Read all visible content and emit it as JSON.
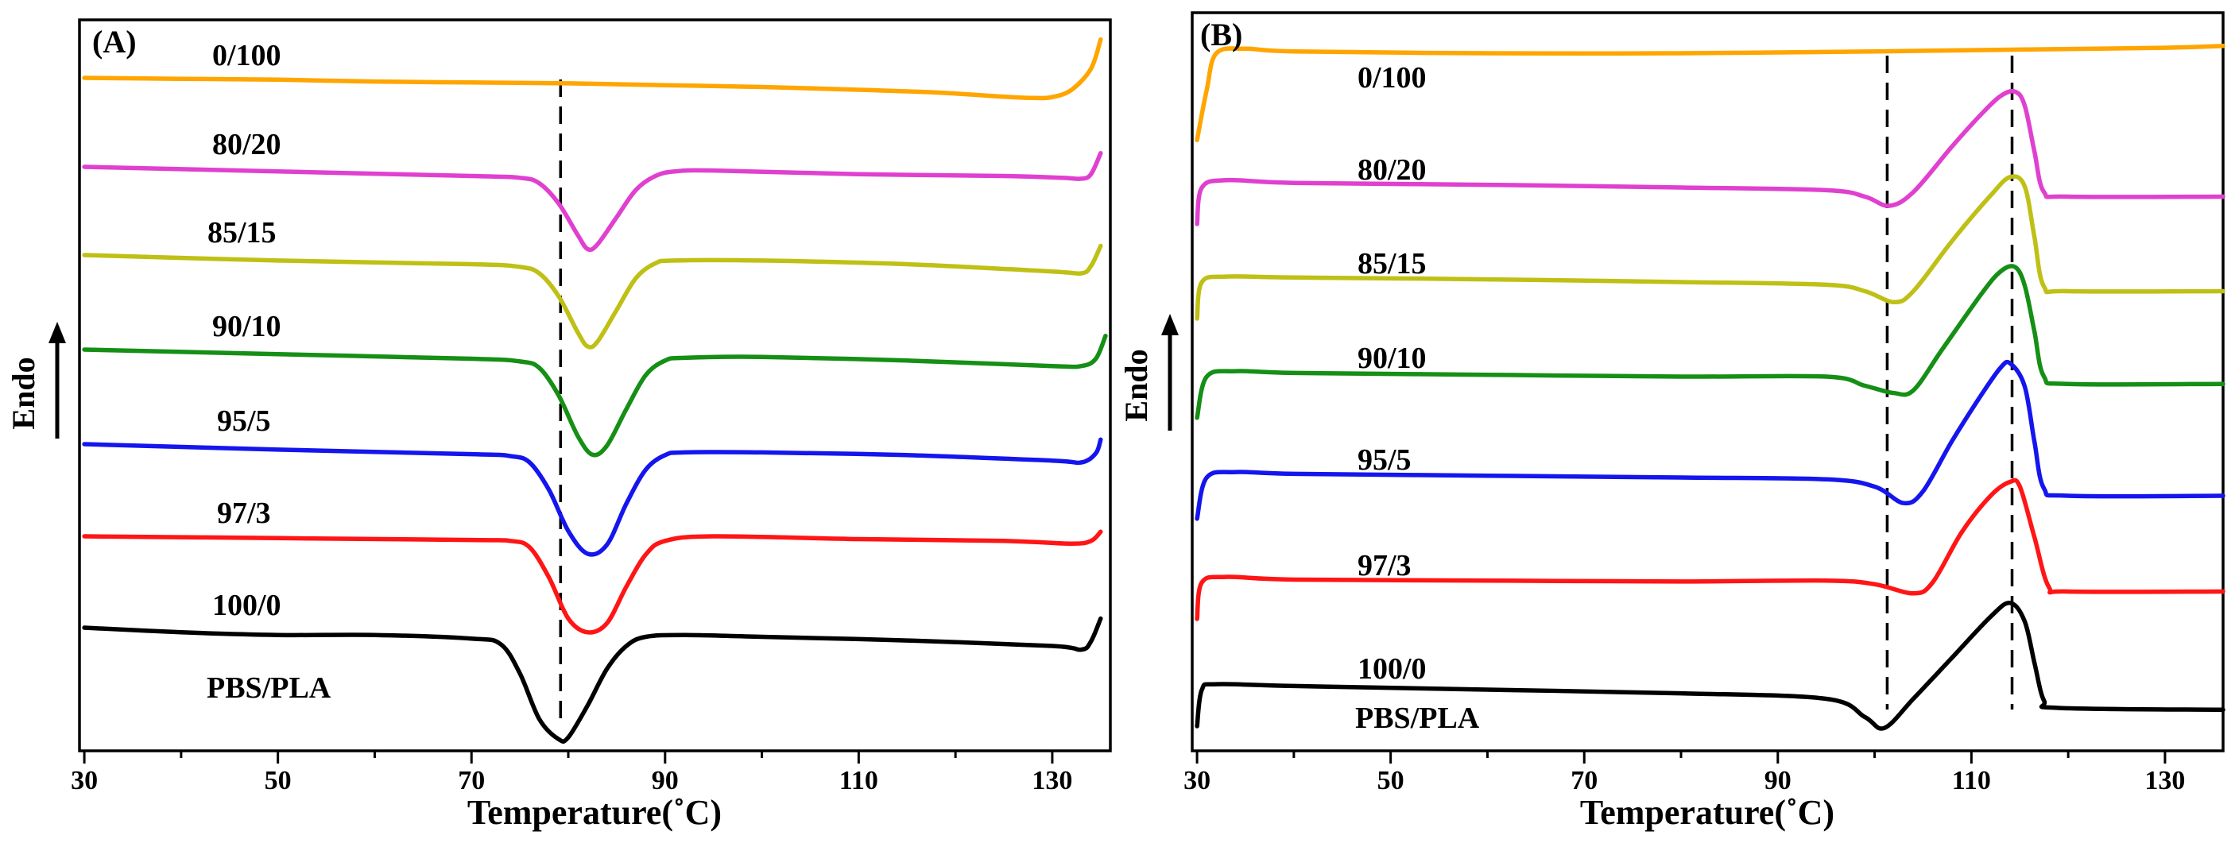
{
  "chart_data": [
    {
      "type": "line",
      "panel_label": "(A)",
      "xlabel": "Temperature(˚C)",
      "ylabel": "Endo",
      "xlim": [
        29.5,
        136
      ],
      "xticks": [
        30,
        50,
        70,
        90,
        110,
        130
      ],
      "xtick_labels": [
        "30",
        "50",
        "70",
        "90",
        "110",
        "130"
      ],
      "reference_lines_x": [
        79.2
      ],
      "annotation": "PBS/PLA",
      "series": [
        {
          "name": "0/100",
          "color": "#FFA500",
          "points": [
            [
              30,
              0.0
            ],
            [
              40,
              -0.01
            ],
            [
              50,
              -0.02
            ],
            [
              60,
              -0.04
            ],
            [
              70,
              -0.05
            ],
            [
              80,
              -0.06
            ],
            [
              90,
              -0.08
            ],
            [
              100,
              -0.1
            ],
            [
              110,
              -0.13
            ],
            [
              118,
              -0.16
            ],
            [
              124,
              -0.2
            ],
            [
              128,
              -0.22
            ],
            [
              130,
              -0.21
            ],
            [
              132,
              -0.13
            ],
            [
              134,
              0.1
            ],
            [
              135,
              0.42
            ]
          ]
        },
        {
          "name": "80/20",
          "color": "#E040D0",
          "points": [
            [
              30,
              0.0
            ],
            [
              50,
              -0.05
            ],
            [
              70,
              -0.1
            ],
            [
              75,
              -0.12
            ],
            [
              77,
              -0.18
            ],
            [
              79,
              -0.4
            ],
            [
              81,
              -0.75
            ],
            [
              82,
              -0.9
            ],
            [
              83,
              -0.85
            ],
            [
              85,
              -0.55
            ],
            [
              87,
              -0.25
            ],
            [
              89,
              -0.1
            ],
            [
              91,
              -0.05
            ],
            [
              95,
              -0.04
            ],
            [
              110,
              -0.08
            ],
            [
              125,
              -0.1
            ],
            [
              131,
              -0.12
            ],
            [
              133,
              -0.13
            ],
            [
              134,
              -0.08
            ],
            [
              135,
              0.15
            ]
          ]
        },
        {
          "name": "85/15",
          "color": "#BFC015",
          "points": [
            [
              30,
              0.0
            ],
            [
              50,
              -0.06
            ],
            [
              70,
              -0.1
            ],
            [
              75,
              -0.13
            ],
            [
              77,
              -0.2
            ],
            [
              79,
              -0.45
            ],
            [
              81,
              -0.85
            ],
            [
              82,
              -1.0
            ],
            [
              83,
              -0.95
            ],
            [
              85,
              -0.6
            ],
            [
              87,
              -0.25
            ],
            [
              89,
              -0.09
            ],
            [
              91,
              -0.06
            ],
            [
              100,
              -0.06
            ],
            [
              115,
              -0.1
            ],
            [
              130,
              -0.18
            ],
            [
              133,
              -0.2
            ],
            [
              134,
              -0.12
            ],
            [
              135,
              0.1
            ]
          ]
        },
        {
          "name": "90/10",
          "color": "#158F15",
          "points": [
            [
              30,
              0.0
            ],
            [
              50,
              -0.05
            ],
            [
              70,
              -0.1
            ],
            [
              75,
              -0.13
            ],
            [
              77,
              -0.2
            ],
            [
              79,
              -0.5
            ],
            [
              81,
              -0.95
            ],
            [
              82.5,
              -1.15
            ],
            [
              84,
              -1.05
            ],
            [
              86,
              -0.65
            ],
            [
              88,
              -0.28
            ],
            [
              90,
              -0.12
            ],
            [
              92,
              -0.09
            ],
            [
              100,
              -0.08
            ],
            [
              115,
              -0.12
            ],
            [
              130,
              -0.18
            ],
            [
              133,
              -0.18
            ],
            [
              134.5,
              -0.1
            ],
            [
              135.5,
              0.15
            ]
          ]
        },
        {
          "name": "95/5",
          "color": "#1515EE",
          "points": [
            [
              30,
              0.0
            ],
            [
              50,
              -0.06
            ],
            [
              70,
              -0.11
            ],
            [
              74,
              -0.13
            ],
            [
              76,
              -0.2
            ],
            [
              78,
              -0.5
            ],
            [
              80,
              -0.95
            ],
            [
              82,
              -1.2
            ],
            [
              84,
              -1.1
            ],
            [
              86,
              -0.65
            ],
            [
              88,
              -0.28
            ],
            [
              90,
              -0.12
            ],
            [
              92,
              -0.09
            ],
            [
              100,
              -0.09
            ],
            [
              115,
              -0.12
            ],
            [
              130,
              -0.18
            ],
            [
              133,
              -0.2
            ],
            [
              134.5,
              -0.1
            ],
            [
              135,
              0.05
            ]
          ]
        },
        {
          "name": "97/3",
          "color": "#FF1515",
          "points": [
            [
              30,
              0.0
            ],
            [
              50,
              -0.02
            ],
            [
              70,
              -0.04
            ],
            [
              74,
              -0.05
            ],
            [
              76,
              -0.12
            ],
            [
              78,
              -0.45
            ],
            [
              80,
              -0.9
            ],
            [
              82,
              -1.05
            ],
            [
              84,
              -0.95
            ],
            [
              86,
              -0.55
            ],
            [
              88,
              -0.2
            ],
            [
              90,
              -0.05
            ],
            [
              95,
              0.0
            ],
            [
              110,
              -0.03
            ],
            [
              125,
              -0.05
            ],
            [
              132,
              -0.08
            ],
            [
              134,
              -0.05
            ],
            [
              135,
              0.05
            ]
          ]
        },
        {
          "name": "100/0",
          "color": "#000000",
          "points": [
            [
              30,
              0.0
            ],
            [
              40,
              -0.05
            ],
            [
              50,
              -0.08
            ],
            [
              60,
              -0.08
            ],
            [
              70,
              -0.12
            ],
            [
              73,
              -0.18
            ],
            [
              75,
              -0.5
            ],
            [
              77,
              -1.0
            ],
            [
              79,
              -1.22
            ],
            [
              80,
              -1.2
            ],
            [
              82,
              -0.85
            ],
            [
              84,
              -0.45
            ],
            [
              86,
              -0.2
            ],
            [
              88,
              -0.1
            ],
            [
              92,
              -0.08
            ],
            [
              100,
              -0.1
            ],
            [
              115,
              -0.14
            ],
            [
              130,
              -0.2
            ],
            [
              133,
              -0.24
            ],
            [
              134,
              -0.15
            ],
            [
              135,
              0.1
            ]
          ]
        }
      ]
    },
    {
      "type": "line",
      "panel_label": "(B)",
      "xlabel": "Temperature(˚C)",
      "ylabel": "Endo",
      "xlim": [
        29.5,
        136
      ],
      "xticks": [
        30,
        50,
        70,
        90,
        110,
        130
      ],
      "xtick_labels": [
        "30",
        "50",
        "70",
        "90",
        "110",
        "130"
      ],
      "reference_lines_x": [
        101.3,
        114.2
      ],
      "annotation": "PBS/PLA",
      "series": [
        {
          "name": "0/100",
          "color": "#FFA500",
          "points": [
            [
              30,
              -0.95
            ],
            [
              31,
              -0.4
            ],
            [
              32,
              0.0
            ],
            [
              35,
              0.05
            ],
            [
              40,
              0.02
            ],
            [
              60,
              0.0
            ],
            [
              80,
              0.0
            ],
            [
              100,
              0.02
            ],
            [
              115,
              0.04
            ],
            [
              130,
              0.06
            ],
            [
              136,
              0.08
            ]
          ]
        },
        {
          "name": "80/20",
          "color": "#E040D0",
          "points": [
            [
              30,
              -0.4
            ],
            [
              30.5,
              0.0
            ],
            [
              33,
              0.08
            ],
            [
              40,
              0.05
            ],
            [
              60,
              0.03
            ],
            [
              80,
              0.0
            ],
            [
              95,
              -0.03
            ],
            [
              99,
              -0.1
            ],
            [
              101.5,
              -0.2
            ],
            [
              104,
              -0.05
            ],
            [
              108,
              0.45
            ],
            [
              111,
              0.8
            ],
            [
              113,
              1.0
            ],
            [
              114.5,
              1.05
            ],
            [
              115.5,
              0.9
            ],
            [
              116.5,
              0.4
            ],
            [
              117.5,
              -0.05
            ],
            [
              120,
              -0.1
            ],
            [
              136,
              -0.1
            ]
          ]
        },
        {
          "name": "85/15",
          "color": "#BFC015",
          "points": [
            [
              30,
              -0.4
            ],
            [
              30.5,
              0.0
            ],
            [
              33,
              0.06
            ],
            [
              40,
              0.05
            ],
            [
              60,
              0.03
            ],
            [
              80,
              0.0
            ],
            [
              95,
              -0.03
            ],
            [
              99,
              -0.1
            ],
            [
              102,
              -0.22
            ],
            [
              104,
              -0.1
            ],
            [
              108,
              0.45
            ],
            [
              112,
              0.95
            ],
            [
              114,
              1.15
            ],
            [
              115.5,
              1.05
            ],
            [
              116.5,
              0.5
            ],
            [
              117.5,
              -0.05
            ],
            [
              120,
              -0.1
            ],
            [
              136,
              -0.1
            ]
          ]
        },
        {
          "name": "90/10",
          "color": "#158F15",
          "points": [
            [
              30,
              -0.45
            ],
            [
              31,
              0.0
            ],
            [
              34,
              0.06
            ],
            [
              40,
              0.04
            ],
            [
              60,
              0.02
            ],
            [
              80,
              0.0
            ],
            [
              95,
              0.0
            ],
            [
              99,
              -0.1
            ],
            [
              102,
              -0.18
            ],
            [
              104,
              -0.15
            ],
            [
              107,
              0.3
            ],
            [
              111,
              0.9
            ],
            [
              113,
              1.15
            ],
            [
              114.5,
              1.2
            ],
            [
              115.5,
              1.0
            ],
            [
              116.5,
              0.5
            ],
            [
              117.5,
              0.0
            ],
            [
              120,
              -0.08
            ],
            [
              136,
              -0.08
            ]
          ]
        },
        {
          "name": "95/5",
          "color": "#1515EE",
          "points": [
            [
              30,
              -0.45
            ],
            [
              31,
              0.0
            ],
            [
              34,
              0.06
            ],
            [
              40,
              0.04
            ],
            [
              60,
              0.02
            ],
            [
              80,
              0.0
            ],
            [
              95,
              -0.02
            ],
            [
              100,
              -0.1
            ],
            [
              103,
              -0.28
            ],
            [
              105,
              -0.15
            ],
            [
              108,
              0.4
            ],
            [
              111,
              0.9
            ],
            [
              113,
              1.2
            ],
            [
              114,
              1.25
            ],
            [
              115.5,
              1.0
            ],
            [
              116.5,
              0.4
            ],
            [
              117.5,
              -0.12
            ],
            [
              120,
              -0.2
            ],
            [
              136,
              -0.2
            ]
          ]
        },
        {
          "name": "97/3",
          "color": "#FF1515",
          "points": [
            [
              30,
              -0.4
            ],
            [
              30.5,
              0.0
            ],
            [
              33,
              0.06
            ],
            [
              40,
              0.03
            ],
            [
              60,
              0.02
            ],
            [
              80,
              0.01
            ],
            [
              95,
              0.02
            ],
            [
              100,
              -0.02
            ],
            [
              104,
              -0.12
            ],
            [
              106,
              0.0
            ],
            [
              109,
              0.55
            ],
            [
              112,
              0.95
            ],
            [
              114,
              1.1
            ],
            [
              115,
              1.05
            ],
            [
              116.5,
              0.5
            ],
            [
              118,
              -0.05
            ],
            [
              120,
              -0.1
            ],
            [
              136,
              -0.1
            ]
          ]
        },
        {
          "name": "100/0",
          "color": "#000000",
          "points": [
            [
              30,
              -0.4
            ],
            [
              30.5,
              0.0
            ],
            [
              32,
              0.06
            ],
            [
              40,
              0.04
            ],
            [
              60,
              0.0
            ],
            [
              80,
              -0.04
            ],
            [
              95,
              -0.1
            ],
            [
              99,
              -0.3
            ],
            [
              101,
              -0.42
            ],
            [
              104,
              -0.1
            ],
            [
              108,
              0.35
            ],
            [
              112,
              0.8
            ],
            [
              114,
              0.95
            ],
            [
              115.5,
              0.75
            ],
            [
              116.5,
              0.3
            ],
            [
              117.5,
              -0.12
            ],
            [
              119,
              -0.2
            ],
            [
              136,
              -0.22
            ]
          ]
        }
      ]
    }
  ]
}
